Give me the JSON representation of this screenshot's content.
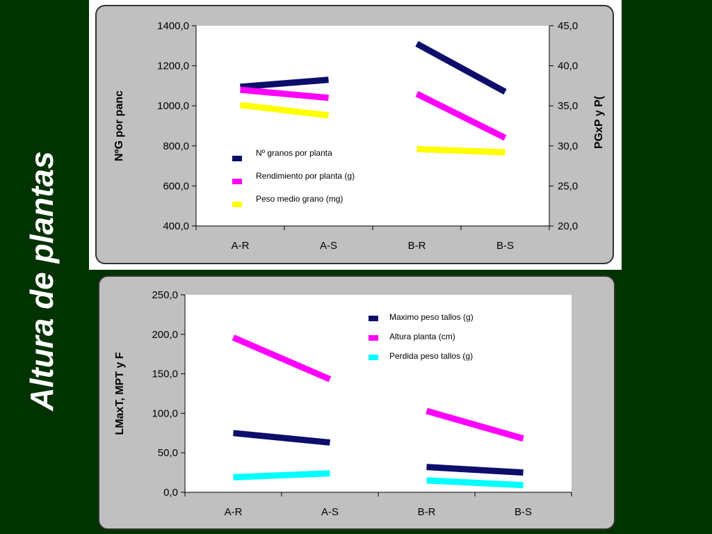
{
  "slide": {
    "title": "Altura de plantas"
  },
  "colors": {
    "navy": "#0d0d6b",
    "magenta": "#ff00ff",
    "yellow": "#ffff00",
    "cyan": "#00ffff",
    "panel": "#c0c0c0",
    "background": "#003300"
  },
  "chart_data": [
    {
      "type": "line",
      "categories": [
        "A-R",
        "A-S",
        "B-R",
        "B-S"
      ],
      "ylabel": "NºG por panc",
      "y2label": "PGxP y P(",
      "ylim": [
        400,
        1400
      ],
      "y2lim": [
        20,
        45
      ],
      "yticks": [
        "1400,0",
        "1200,0",
        "1000,0",
        "800,0",
        "600,0",
        "400,0"
      ],
      "y2ticks": [
        "45,0",
        "40,0",
        "35,0",
        "30,0",
        "25,0",
        "20,0"
      ],
      "grid": false,
      "legend_position": "left-middle",
      "series": [
        {
          "name": "Nº granos por planta",
          "axis": "left",
          "color": "navy",
          "segments": [
            {
              "x": [
                "A-R",
                "A-S"
              ],
              "y": [
                1095,
                1130
              ]
            },
            {
              "x": [
                "B-R",
                "B-S"
              ],
              "y": [
                1310,
                1070
              ]
            }
          ]
        },
        {
          "name": "Rendimiento por planta (g)",
          "axis": "right",
          "color": "magenta",
          "segments": [
            {
              "x": [
                "A-R",
                "A-S"
              ],
              "y": [
                37.0,
                36.0
              ]
            },
            {
              "x": [
                "B-R",
                "B-S"
              ],
              "y": [
                36.5,
                31.0
              ]
            }
          ]
        },
        {
          "name": "Peso medio grano (mg)",
          "axis": "right",
          "color": "yellow",
          "segments": [
            {
              "x": [
                "A-R",
                "A-S"
              ],
              "y": [
                35.1,
                33.8
              ]
            },
            {
              "x": [
                "B-R",
                "B-S"
              ],
              "y": [
                29.6,
                29.2
              ]
            }
          ]
        }
      ]
    },
    {
      "type": "line",
      "categories": [
        "A-R",
        "A-S",
        "B-R",
        "B-S"
      ],
      "ylabel": "LMaxT, MPT y F",
      "ylim": [
        0,
        250
      ],
      "yticks": [
        "250,0",
        "200,0",
        "150,0",
        "100,0",
        "50,0",
        "0,0"
      ],
      "grid": false,
      "legend_position": "top-right",
      "series": [
        {
          "name": "Maximo peso tallos (g)",
          "color": "navy",
          "segments": [
            {
              "x": [
                "A-R",
                "A-S"
              ],
              "y": [
                75,
                63
              ]
            },
            {
              "x": [
                "B-R",
                "B-S"
              ],
              "y": [
                32,
                25
              ]
            }
          ]
        },
        {
          "name": "Altura planta (cm)",
          "color": "magenta",
          "segments": [
            {
              "x": [
                "A-R",
                "A-S"
              ],
              "y": [
                196,
                143
              ]
            },
            {
              "x": [
                "B-R",
                "B-S"
              ],
              "y": [
                103,
                68
              ]
            }
          ]
        },
        {
          "name": "Perdida peso tallos (g)",
          "color": "cyan",
          "segments": [
            {
              "x": [
                "A-R",
                "A-S"
              ],
              "y": [
                19,
                24
              ]
            },
            {
              "x": [
                "B-R",
                "B-S"
              ],
              "y": [
                15,
                9
              ]
            }
          ]
        }
      ]
    }
  ]
}
